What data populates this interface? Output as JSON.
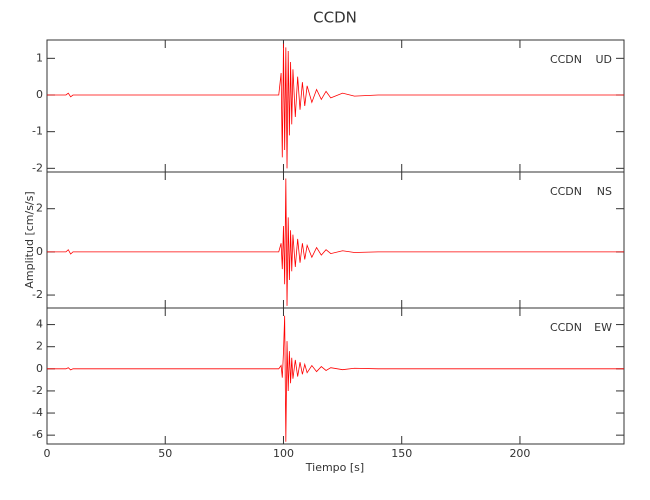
{
  "chart_data": [
    {
      "type": "line",
      "title": "CCDN",
      "labels": [
        "CCDN",
        "UD"
      ],
      "x": [
        0,
        8,
        9,
        10,
        11,
        98,
        99,
        99.5,
        100,
        100.5,
        101,
        101.5,
        102,
        102.5,
        103,
        103.5,
        104,
        105,
        106,
        107,
        108,
        109,
        110,
        112,
        114,
        116,
        118,
        120,
        125,
        130,
        140,
        244
      ],
      "series": [
        {
          "color": "#ff0000",
          "values": [
            0,
            0,
            0.05,
            -0.05,
            0,
            0,
            0.6,
            -1.7,
            1.4,
            -1.5,
            1.3,
            -2.0,
            1.2,
            -1.1,
            0.9,
            -0.8,
            0.7,
            -0.6,
            0.5,
            -0.4,
            0.35,
            -0.3,
            0.25,
            -0.2,
            0.15,
            -0.12,
            0.1,
            -0.08,
            0.05,
            -0.03,
            0,
            0
          ]
        }
      ],
      "xlim": [
        0,
        244
      ],
      "xticks": [
        0,
        50,
        100,
        150,
        200
      ],
      "ylim": [
        -2.1,
        1.5
      ],
      "yticks": [
        -2,
        -1,
        0,
        1
      ]
    },
    {
      "type": "line",
      "ylabel": "Amplitud [cm/s/s]",
      "labels": [
        "CCDN",
        "NS"
      ],
      "x": [
        0,
        8,
        9,
        10,
        11,
        98,
        99,
        99.5,
        100,
        100.5,
        101,
        101.5,
        102,
        102.5,
        103,
        103.5,
        104,
        105,
        106,
        107,
        108,
        109,
        110,
        112,
        114,
        116,
        118,
        120,
        125,
        130,
        140,
        244
      ],
      "series": [
        {
          "color": "#ff0000",
          "values": [
            0,
            0,
            0.1,
            -0.1,
            0,
            0,
            0.4,
            -0.8,
            1.2,
            -1.5,
            3.4,
            -2.5,
            1.6,
            -1.3,
            1.0,
            -0.9,
            0.8,
            -0.7,
            0.6,
            -0.5,
            0.4,
            -0.35,
            0.3,
            -0.25,
            0.2,
            -0.15,
            0.1,
            -0.08,
            0.05,
            -0.03,
            0,
            0
          ]
        }
      ],
      "xlim": [
        0,
        244
      ],
      "xticks": [
        0,
        50,
        100,
        150,
        200
      ],
      "ylim": [
        -2.6,
        3.7
      ],
      "yticks": [
        -2,
        0,
        2
      ]
    },
    {
      "type": "line",
      "xlabel": "Tiempo [s]",
      "labels": [
        "CCDN",
        "EW"
      ],
      "x": [
        0,
        8,
        9,
        10,
        11,
        98,
        99,
        99.5,
        100,
        100.5,
        101,
        101.5,
        102,
        102.5,
        103,
        103.5,
        104,
        105,
        106,
        107,
        108,
        109,
        110,
        112,
        114,
        116,
        118,
        120,
        125,
        130,
        140,
        244
      ],
      "series": [
        {
          "color": "#ff0000",
          "values": [
            0,
            0,
            0.1,
            -0.1,
            0,
            0,
            0.3,
            -0.8,
            1.5,
            4.8,
            -6.6,
            2.5,
            -2.0,
            1.6,
            -1.3,
            1.0,
            -0.9,
            0.8,
            -0.7,
            0.6,
            -0.5,
            0.4,
            -0.35,
            0.3,
            -0.25,
            0.2,
            -0.15,
            0.1,
            -0.08,
            0.05,
            0,
            0
          ]
        }
      ],
      "xlim": [
        0,
        244
      ],
      "xticks": [
        0,
        50,
        100,
        150,
        200
      ],
      "ylim": [
        -6.8,
        5.5
      ],
      "yticks": [
        -6,
        -4,
        -2,
        0,
        2,
        4
      ]
    }
  ]
}
